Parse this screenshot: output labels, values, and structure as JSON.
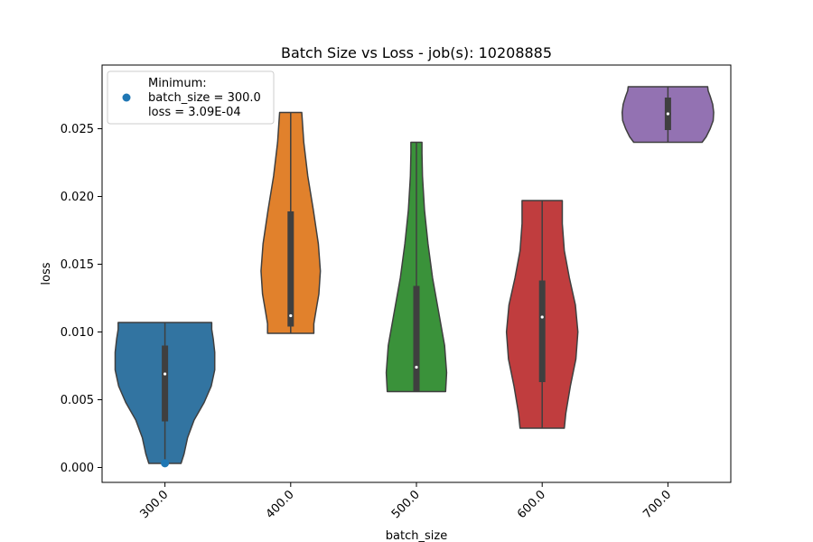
{
  "chart_data": {
    "type": "violin",
    "title": "Batch Size vs Loss - job(s): 10208885",
    "xlabel": "batch_size",
    "ylabel": "loss",
    "categories": [
      "300.0",
      "400.0",
      "500.0",
      "600.0",
      "700.0"
    ],
    "ylim": [
      -0.0011,
      0.0297
    ],
    "yticks": [
      0.0,
      0.005,
      0.01,
      0.015,
      0.02,
      0.025
    ],
    "ytick_labels": [
      "0.000",
      "0.005",
      "0.010",
      "0.015",
      "0.020",
      "0.025"
    ],
    "grid": false,
    "legend_position": "top-left",
    "colors": [
      "#3274a1",
      "#e1812c",
      "#3a923a",
      "#c03d3e",
      "#9372b2"
    ],
    "violins": [
      {
        "category": "300.0",
        "color": "#3274a1",
        "min": 0.0003,
        "max": 0.0107,
        "q1": 0.0034,
        "median": 0.0069,
        "q3": 0.009,
        "profile": [
          [
            0.0003,
            0.32
          ],
          [
            0.001,
            0.38
          ],
          [
            0.0022,
            0.45
          ],
          [
            0.0035,
            0.58
          ],
          [
            0.0048,
            0.78
          ],
          [
            0.006,
            0.92
          ],
          [
            0.0072,
            0.99
          ],
          [
            0.0085,
            0.99
          ],
          [
            0.0095,
            0.96
          ],
          [
            0.0102,
            0.93
          ],
          [
            0.0107,
            0.93
          ]
        ]
      },
      {
        "category": "400.0",
        "color": "#e1812c",
        "min": 0.0099,
        "max": 0.0262,
        "q1": 0.0104,
        "median": 0.0112,
        "q3": 0.0189,
        "profile": [
          [
            0.0099,
            0.46
          ],
          [
            0.0106,
            0.46
          ],
          [
            0.0115,
            0.5
          ],
          [
            0.0128,
            0.56
          ],
          [
            0.0145,
            0.59
          ],
          [
            0.0165,
            0.55
          ],
          [
            0.019,
            0.45
          ],
          [
            0.0215,
            0.34
          ],
          [
            0.024,
            0.26
          ],
          [
            0.0262,
            0.22
          ]
        ]
      },
      {
        "category": "500.0",
        "color": "#3a923a",
        "min": 0.0056,
        "max": 0.024,
        "q1": 0.0056,
        "median": 0.0074,
        "q3": 0.0134,
        "profile": [
          [
            0.0056,
            0.58
          ],
          [
            0.007,
            0.6
          ],
          [
            0.009,
            0.56
          ],
          [
            0.0115,
            0.44
          ],
          [
            0.014,
            0.32
          ],
          [
            0.0165,
            0.23
          ],
          [
            0.019,
            0.16
          ],
          [
            0.0215,
            0.12
          ],
          [
            0.0232,
            0.11
          ],
          [
            0.024,
            0.11
          ]
        ]
      },
      {
        "category": "600.0",
        "color": "#c03d3e",
        "min": 0.0029,
        "max": 0.0197,
        "q1": 0.0063,
        "median": 0.0111,
        "q3": 0.0138,
        "profile": [
          [
            0.0029,
            0.44
          ],
          [
            0.004,
            0.47
          ],
          [
            0.006,
            0.56
          ],
          [
            0.008,
            0.67
          ],
          [
            0.01,
            0.71
          ],
          [
            0.012,
            0.66
          ],
          [
            0.014,
            0.54
          ],
          [
            0.016,
            0.44
          ],
          [
            0.018,
            0.4
          ],
          [
            0.0197,
            0.4
          ]
        ]
      },
      {
        "category": "700.0",
        "color": "#9372b2",
        "min": 0.024,
        "max": 0.0281,
        "q1": 0.0249,
        "median": 0.0261,
        "q3": 0.0273,
        "profile": [
          [
            0.024,
            0.68
          ],
          [
            0.0244,
            0.76
          ],
          [
            0.025,
            0.84
          ],
          [
            0.0256,
            0.9
          ],
          [
            0.0262,
            0.91
          ],
          [
            0.0268,
            0.89
          ],
          [
            0.0274,
            0.84
          ],
          [
            0.0278,
            0.8
          ],
          [
            0.0281,
            0.79
          ]
        ]
      }
    ],
    "minimum_point": {
      "x": "300.0",
      "y": 0.000309,
      "color": "#1f77b4"
    },
    "legend": {
      "entries": [
        "Minimum:",
        "batch_size = 300.0",
        "loss = 3.09E-04"
      ]
    }
  }
}
